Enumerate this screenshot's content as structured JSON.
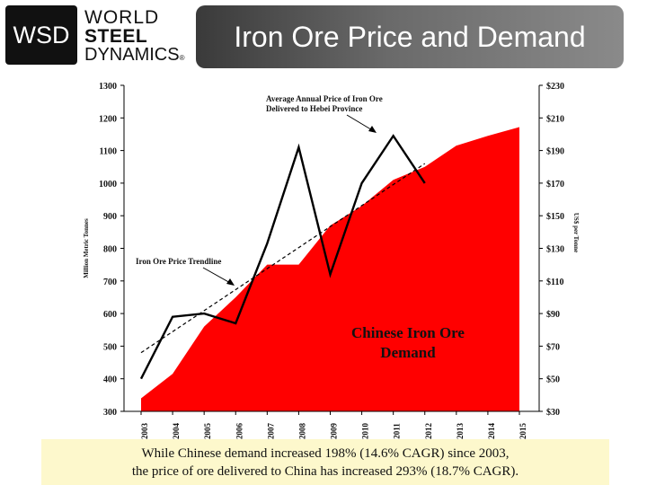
{
  "header": {
    "logo_abbrev": "WSD",
    "logo_words": [
      "WORLD",
      "STEEL",
      "DYNAMICS"
    ],
    "logo_reg": "®",
    "title": "Iron Ore Price and Demand"
  },
  "chart_data": {
    "type": "area+line",
    "x": [
      "2003",
      "2004",
      "2005",
      "2006",
      "2007",
      "2008",
      "2009",
      "2010",
      "2011",
      "2012",
      "2013",
      "2014",
      "2015"
    ],
    "left_axis": {
      "label": "Million Metric Tonnes",
      "ylim": [
        300,
        1300
      ],
      "ticks": [
        "1300",
        "1200",
        "1100",
        "1000",
        "900",
        "800",
        "700",
        "600",
        "500",
        "400",
        "300"
      ]
    },
    "right_axis": {
      "label": "US$ per Tonne",
      "ylim": [
        30,
        230
      ],
      "ticks": [
        "$230",
        "$210",
        "$190",
        "$170",
        "$150",
        "$130",
        "$110",
        "$90",
        "$70",
        "$50",
        "$30"
      ]
    },
    "series": [
      {
        "name": "Chinese Iron Ore Demand",
        "kind": "area",
        "axis": "left",
        "color": "#ff0000",
        "x": [
          2003,
          2004,
          2005,
          2006,
          2007,
          2008,
          2009,
          2010,
          2011,
          2012,
          2013,
          2014,
          2015
        ],
        "values": [
          340,
          415,
          560,
          650,
          750,
          750,
          870,
          930,
          1010,
          1050,
          1115,
          1145,
          1172
        ]
      },
      {
        "name": "Average Annual Price of Iron Ore Delivered to Hebei Province",
        "kind": "line",
        "axis": "right",
        "color": "#000000",
        "x": [
          2003,
          2004,
          2005,
          2006,
          2007,
          2008,
          2009,
          2010,
          2011,
          2012
        ],
        "values": [
          50,
          88,
          90,
          84,
          133,
          192,
          114,
          170,
          199,
          170
        ]
      },
      {
        "name": "Iron Ore Price Trendline",
        "kind": "dashed-line",
        "axis": "right",
        "color": "#000000",
        "x": [
          2003,
          2012
        ],
        "values": [
          66,
          182
        ]
      }
    ],
    "annotations": {
      "price": "Average Annual Price of Iron Ore Delivered to Hebei Province",
      "trend": "Iron Ore Price Trendline",
      "demand_line1": "Chinese Iron Ore",
      "demand_line2": "Demand"
    }
  },
  "caption": {
    "line1": "While Chinese demand increased 198% (14.6% CAGR) since 2003,",
    "line2": "the price of ore delivered to China has increased 293% (18.7% CAGR)."
  }
}
